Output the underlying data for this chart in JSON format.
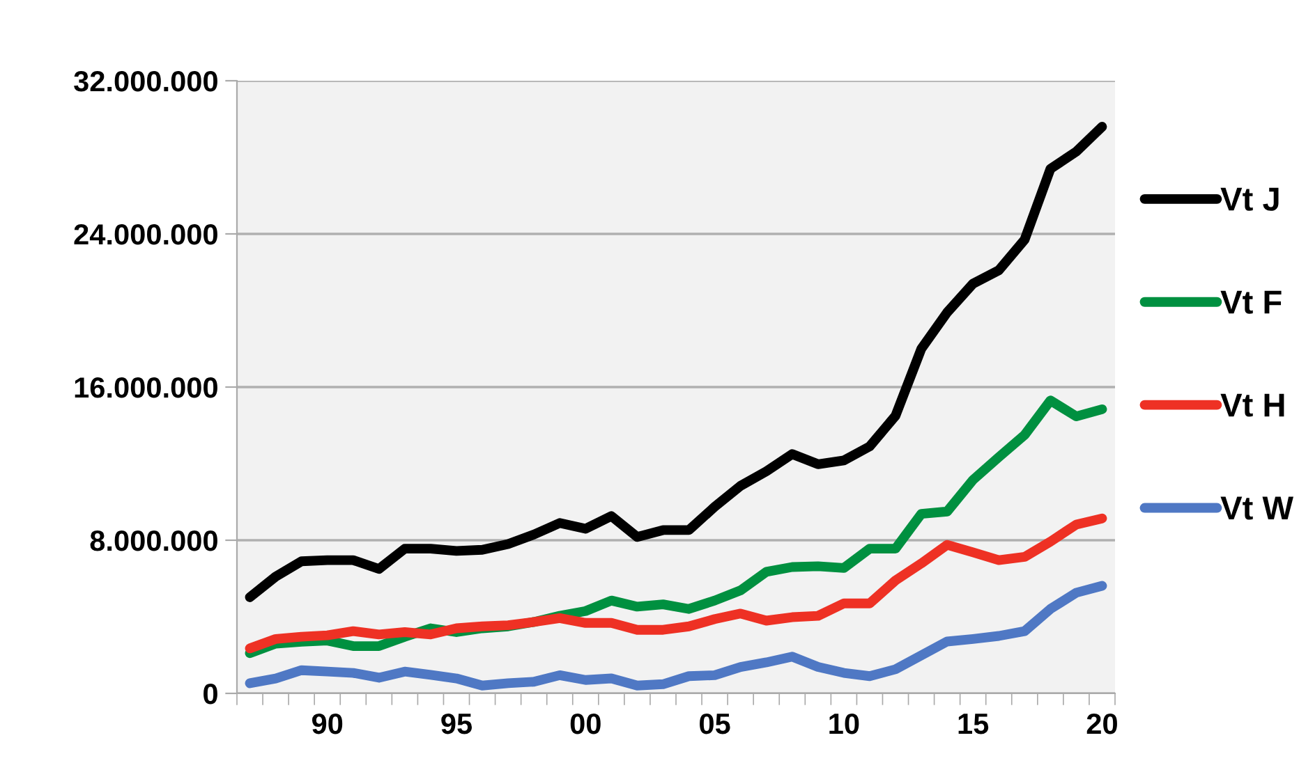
{
  "chart_data": {
    "type": "line",
    "categories": [
      null,
      null,
      null,
      "90",
      null,
      null,
      null,
      null,
      "95",
      null,
      null,
      null,
      null,
      "00",
      null,
      null,
      null,
      null,
      "05",
      null,
      null,
      null,
      null,
      "10",
      null,
      null,
      null,
      null,
      "15",
      null,
      null,
      null,
      null,
      "20"
    ],
    "series": [
      {
        "name": "Vt J",
        "color": "#000000",
        "values": [
          5020000,
          6100000,
          6900000,
          6960000,
          6960000,
          6500000,
          7560000,
          7560000,
          7440000,
          7500000,
          7800000,
          8300000,
          8900000,
          8600000,
          9260000,
          8170000,
          8530000,
          8530000,
          9750000,
          10840000,
          11600000,
          12500000,
          11970000,
          12170000,
          12900000,
          14500000,
          18000000,
          19900000,
          21400000,
          22100000,
          23700000,
          27400000,
          28300000,
          29600000
        ]
      },
      {
        "name": "Vt F",
        "color": "#009040",
        "values": [
          2100000,
          2600000,
          2700000,
          2760000,
          2470000,
          2470000,
          2960000,
          3400000,
          3200000,
          3400000,
          3500000,
          3730000,
          4050000,
          4300000,
          4850000,
          4530000,
          4650000,
          4410000,
          4850000,
          5380000,
          6350000,
          6600000,
          6640000,
          6550000,
          7560000,
          7560000,
          9380000,
          9500000,
          11150000,
          12340000,
          13500000,
          15300000,
          14470000,
          14840000
        ]
      },
      {
        "name": "Vt H",
        "color": "#ee3124",
        "values": [
          2350000,
          2840000,
          2960000,
          3030000,
          3250000,
          3080000,
          3200000,
          3080000,
          3400000,
          3500000,
          3560000,
          3730000,
          3930000,
          3680000,
          3680000,
          3320000,
          3320000,
          3500000,
          3880000,
          4170000,
          3800000,
          3980000,
          4050000,
          4700000,
          4700000,
          5900000,
          6790000,
          7760000,
          7370000,
          6960000,
          7130000,
          7930000,
          8820000,
          9140000
        ]
      },
      {
        "name": "Vt W",
        "color": "#4f78c4",
        "values": [
          530000,
          780000,
          1210000,
          1140000,
          1070000,
          820000,
          1140000,
          970000,
          780000,
          410000,
          530000,
          610000,
          950000,
          700000,
          780000,
          410000,
          480000,
          900000,
          950000,
          1380000,
          1620000,
          1920000,
          1380000,
          1070000,
          900000,
          1260000,
          1990000,
          2710000,
          2840000,
          3000000,
          3250000,
          4410000,
          5260000,
          5620000
        ]
      }
    ],
    "ylim": [
      0,
      32000000
    ],
    "yticks": [
      {
        "value": 0,
        "label": "0"
      },
      {
        "value": 8000000,
        "label": "8.000.000"
      },
      {
        "value": 16000000,
        "label": "16.000.000"
      },
      {
        "value": 24000000,
        "label": "24.000.000"
      },
      {
        "value": 32000000,
        "label": "32.000.000"
      }
    ],
    "grid": "y",
    "legend": "right",
    "marker": "none",
    "line_style": "solid"
  }
}
